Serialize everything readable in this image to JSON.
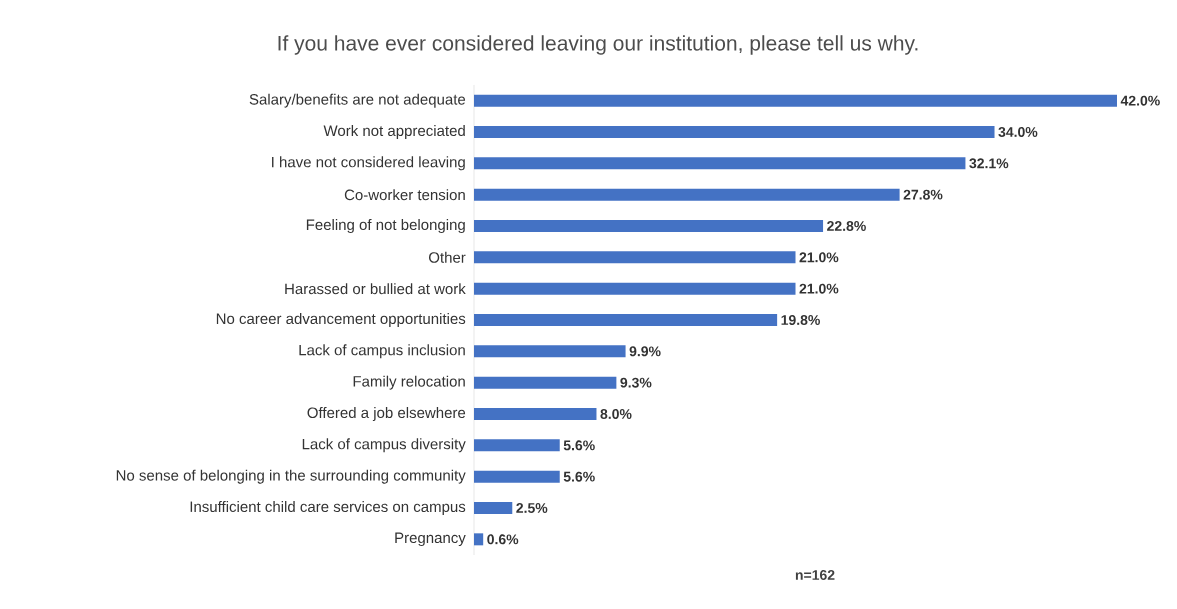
{
  "chart_data": {
    "type": "bar",
    "orientation": "horizontal",
    "title": "If you have ever considered leaving our institution, please tell us why.",
    "categories": [
      "Salary/benefits are not adequate",
      "Work not appreciated",
      "I have not considered leaving",
      "Co-worker tension",
      "Feeling of not belonging",
      "Other",
      "Harassed or bullied at work",
      "No career advancement opportunities",
      "Lack of campus inclusion",
      "Family relocation",
      "Offered a job elsewhere",
      "Lack of campus diversity",
      "No sense of belonging in the surrounding community",
      "Insufficient child care services on campus",
      "Pregnancy"
    ],
    "values": [
      42.0,
      34.0,
      32.1,
      27.8,
      22.8,
      21.0,
      21.0,
      19.8,
      9.9,
      9.3,
      8.0,
      5.6,
      5.6,
      2.5,
      0.6
    ],
    "value_labels": [
      "42.0%",
      "34.0%",
      "32.1%",
      "27.8%",
      "22.8%",
      "21.0%",
      "21.0%",
      "19.8%",
      "9.9%",
      "9.3%",
      "8.0%",
      "5.6%",
      "5.6%",
      "2.5%",
      "0.6%"
    ],
    "color": "#4472c4",
    "annotations": [
      "n=162"
    ]
  }
}
